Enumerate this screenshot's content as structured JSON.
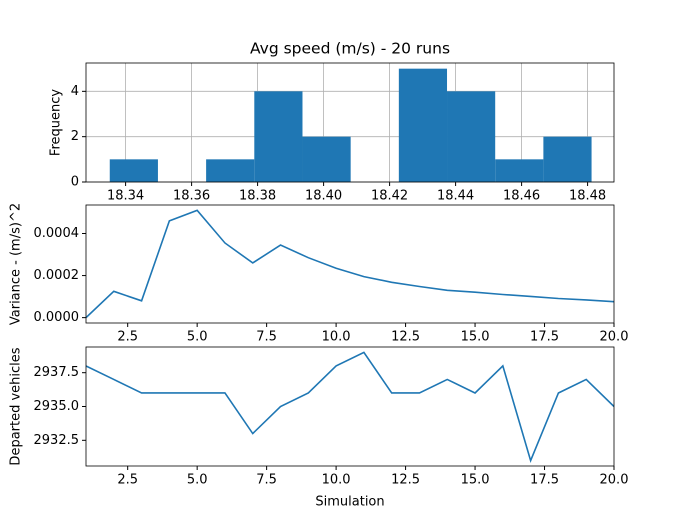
{
  "chart_data": [
    {
      "type": "histogram",
      "title": "Avg speed (m/s) - 20 runs",
      "y_label": "Frequency",
      "color": "#1f77b4",
      "grid": true,
      "bins": [
        18.3352,
        18.3498,
        18.3644,
        18.379,
        18.3936,
        18.4082,
        18.4228,
        18.4374,
        18.452,
        18.4666,
        18.4812
      ],
      "values": [
        1,
        0,
        1,
        4,
        2,
        0,
        5,
        4,
        1,
        2
      ],
      "xlim": [
        18.328,
        18.488
      ],
      "xticks": [
        18.34,
        {
          "value": 18.36,
          "label": "18.36"
        },
        18.38,
        {
          "value": 18.4,
          "label": "18.40"
        },
        18.42,
        18.44,
        18.46,
        18.48
      ],
      "ylim": [
        0,
        5.25
      ],
      "yticks": [
        0,
        2,
        4
      ]
    },
    {
      "type": "line",
      "y_label": "Variance - (m/s)^2",
      "color": "#1f77b4",
      "grid": false,
      "x": [
        1,
        2,
        3,
        4,
        5,
        6,
        7,
        8,
        9,
        10,
        11,
        12,
        13,
        14,
        15,
        16,
        17,
        18,
        19,
        20
      ],
      "values": [
        0,
        0.000125,
        8e-05,
        0.00046,
        0.00051,
        0.000355,
        0.00026,
        0.000345,
        0.000285,
        0.000235,
        0.000195,
        0.000168,
        0.000148,
        0.00013,
        0.000121,
        0.00011,
        0.000101,
        9.1e-05,
        8.4e-05,
        7.6e-05
      ],
      "xlim": [
        1,
        20
      ],
      "xticks": [
        2.5,
        {
          "value": 5,
          "label": "5.0"
        },
        7.5,
        {
          "value": 10,
          "label": "10.0"
        },
        12.5,
        {
          "value": 15,
          "label": "15.0"
        },
        17.5,
        {
          "value": 20,
          "label": "20.0"
        }
      ],
      "ylim": [
        -2.55e-05,
        0.0005355
      ],
      "yticks": [
        {
          "value": 0,
          "label": "0.0000"
        },
        {
          "value": 0.0002,
          "label": "0.0002"
        },
        {
          "value": 0.0004,
          "label": "0.0004"
        }
      ]
    },
    {
      "type": "line",
      "y_label": "Departed vehicles",
      "x_label": "Simulation",
      "color": "#1f77b4",
      "grid": false,
      "x": [
        1,
        2,
        3,
        4,
        5,
        6,
        7,
        8,
        9,
        10,
        11,
        12,
        13,
        14,
        15,
        16,
        17,
        18,
        19,
        20
      ],
      "values": [
        2938,
        2937,
        2936,
        2936,
        2936,
        2936,
        2933,
        2935,
        2936,
        2938,
        2939,
        2936,
        2936,
        2937,
        2936,
        2938,
        2931,
        2936,
        2937,
        2935
      ],
      "xlim": [
        1,
        20
      ],
      "xticks": [
        2.5,
        {
          "value": 5,
          "label": "5.0"
        },
        7.5,
        {
          "value": 10,
          "label": "10.0"
        },
        12.5,
        {
          "value": 15,
          "label": "15.0"
        },
        17.5,
        {
          "value": 20,
          "label": "20.0"
        }
      ],
      "ylim": [
        2930.6,
        2939.4
      ],
      "yticks": [
        {
          "value": 2932.5,
          "label": "2932.5"
        },
        {
          "value": 2935,
          "label": "2935.0"
        },
        {
          "value": 2937.5,
          "label": "2937.5"
        }
      ]
    }
  ]
}
